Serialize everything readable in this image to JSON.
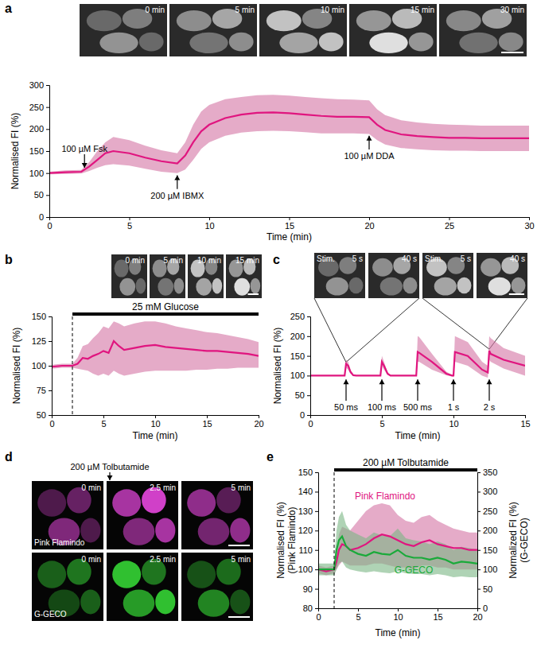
{
  "chart_data": [
    {
      "panel": "a",
      "type": "line",
      "images": [
        "0 min",
        "5 min",
        "10 min",
        "15 min",
        "30 min"
      ],
      "xlabel": "Time (min)",
      "ylabel": "Normalised FI (%)",
      "xlim": [
        0,
        30
      ],
      "xticks": [
        0,
        5,
        10,
        15,
        20,
        25,
        30
      ],
      "ylim": [
        0,
        300
      ],
      "yticks": [
        0,
        50,
        100,
        150,
        200,
        250,
        300
      ],
      "grid": false,
      "x": [
        0,
        1,
        2,
        2.5,
        3,
        3.5,
        4,
        5,
        6,
        7,
        8,
        8.5,
        9,
        9.5,
        10,
        11,
        12,
        13,
        14,
        15,
        16,
        17,
        18,
        19,
        20,
        20.5,
        21,
        22,
        23,
        24,
        25,
        26,
        27,
        28,
        29,
        30
      ],
      "series": [
        {
          "color": "#e0157f",
          "values": [
            100,
            102,
            103,
            115,
            130,
            145,
            150,
            145,
            135,
            127,
            122,
            140,
            170,
            195,
            210,
            225,
            233,
            237,
            238,
            236,
            233,
            230,
            228,
            228,
            227,
            210,
            198,
            188,
            184,
            182,
            180,
            180,
            179,
            179,
            179,
            179
          ],
          "lower": [
            97,
            98,
            99,
            105,
            112,
            118,
            120,
            117,
            110,
            103,
            100,
            108,
            130,
            155,
            170,
            185,
            192,
            195,
            196,
            195,
            193,
            190,
            190,
            190,
            189,
            175,
            165,
            157,
            154,
            152,
            151,
            151,
            150,
            150,
            150,
            150
          ],
          "upper": [
            103,
            106,
            107,
            125,
            150,
            170,
            182,
            175,
            162,
            152,
            145,
            170,
            210,
            240,
            255,
            268,
            273,
            277,
            278,
            276,
            273,
            270,
            268,
            267,
            265,
            245,
            232,
            220,
            215,
            212,
            210,
            209,
            208,
            208,
            208,
            208
          ]
        }
      ],
      "annotations": [
        {
          "text": "100 µM Fsk",
          "x": 2.2,
          "y": 112,
          "text_y": 148
        },
        {
          "text": "200 µM IBMX",
          "x": 8,
          "y": 95,
          "text_y": 42
        },
        {
          "text": "100 µM DDA",
          "x": 20,
          "y": 185,
          "text_y": 132
        }
      ]
    },
    {
      "panel": "b",
      "type": "line",
      "images": [
        "0 min",
        "5 min",
        "10 min",
        "15 min"
      ],
      "xlabel": "Time (min)",
      "ylabel": "Normalised FI (%)",
      "xlim": [
        0,
        20
      ],
      "xticks": [
        0,
        5,
        10,
        15,
        20
      ],
      "ylim": [
        50,
        150
      ],
      "yticks": [
        50,
        75,
        100,
        125,
        150
      ],
      "grid": false,
      "x": [
        0,
        1,
        2,
        2.5,
        3,
        3.5,
        4,
        4.5,
        5,
        5.5,
        6,
        6.5,
        7,
        8,
        9,
        10,
        11,
        12,
        13,
        14,
        15,
        16,
        17,
        18,
        19,
        20
      ],
      "series": [
        {
          "color": "#e0157f",
          "values": [
            99,
            100,
            100,
            102,
            108,
            107,
            110,
            112,
            115,
            113,
            125,
            120,
            116,
            118,
            120,
            121,
            119,
            118,
            117,
            116,
            115,
            115,
            114,
            113,
            112,
            110
          ],
          "lower": [
            97,
            98,
            98,
            97,
            96,
            95,
            92,
            90,
            92,
            90,
            95,
            92,
            90,
            92,
            94,
            95,
            95,
            95,
            95,
            96,
            96,
            97,
            97,
            98,
            98,
            98
          ],
          "upper": [
            101,
            102,
            102,
            108,
            120,
            122,
            128,
            133,
            140,
            138,
            145,
            143,
            140,
            143,
            145,
            145,
            143,
            140,
            138,
            136,
            134,
            133,
            131,
            129,
            127,
            124
          ]
        }
      ],
      "treatments": [
        {
          "text": "25 mM Glucose",
          "start": 2,
          "end": 20
        }
      ]
    },
    {
      "panel": "c",
      "type": "line",
      "images": [
        [
          "Stim.",
          "5 s"
        ],
        "40 s",
        [
          "Stim.",
          "5 s"
        ],
        "40 s"
      ],
      "xlabel": "Time (min)",
      "ylabel": "Normalised FI (%)",
      "xlim": [
        0,
        15
      ],
      "xticks": [
        0,
        5,
        10,
        15
      ],
      "ylim": [
        0,
        250
      ],
      "yticks": [
        0,
        50,
        100,
        150,
        200,
        250
      ],
      "grid": false,
      "x": [
        0,
        2.4,
        2.5,
        2.65,
        2.8,
        3.0,
        3.2,
        4.9,
        5.0,
        5.15,
        5.4,
        5.6,
        7.4,
        7.5,
        7.6,
        8.5,
        9.5,
        9.9,
        10.0,
        10.1,
        11,
        12,
        12.4,
        12.5,
        12.6,
        13.5,
        15
      ],
      "series": [
        {
          "color": "#e0157f",
          "values": [
            100,
            100,
            130,
            125,
            110,
            101,
            100,
            100,
            135,
            125,
            105,
            100,
            100,
            160,
            158,
            135,
            105,
            100,
            100,
            160,
            150,
            115,
            108,
            163,
            155,
            140,
            125
          ],
          "lower": [
            99,
            99,
            120,
            115,
            105,
            100,
            99,
            99,
            125,
            115,
            102,
            99,
            99,
            135,
            135,
            115,
            101,
            98,
            98,
            135,
            125,
            100,
            95,
            140,
            135,
            118,
            100
          ],
          "upper": [
            101,
            101,
            140,
            135,
            115,
            102,
            101,
            101,
            150,
            135,
            108,
            101,
            101,
            200,
            198,
            155,
            110,
            102,
            102,
            200,
            185,
            135,
            125,
            200,
            195,
            170,
            150
          ]
        }
      ],
      "annotations": [
        {
          "text": "50 ms",
          "x": 2.5,
          "y": 90,
          "text_y": 12
        },
        {
          "text": "100 ms",
          "x": 5,
          "y": 90,
          "text_y": 12
        },
        {
          "text": "500 ms",
          "x": 7.5,
          "y": 90,
          "text_y": 12
        },
        {
          "text": "1 s",
          "x": 10,
          "y": 90,
          "text_y": 12
        },
        {
          "text": "2 s",
          "x": 12.5,
          "y": 90,
          "text_y": 12
        }
      ]
    },
    {
      "panel": "d",
      "type": "image",
      "annotations": [
        {
          "text": "200 µM Tolbutamide"
        }
      ],
      "columns": [
        "0 min",
        "2.5 min",
        "5 min"
      ],
      "rows": [
        {
          "name": "Pink Flamindo",
          "color": "#d040c8"
        },
        {
          "name": "G-GECO",
          "color": "#30c030"
        }
      ]
    },
    {
      "panel": "e",
      "type": "line",
      "xlabel": "Time (min)",
      "ylabel": [
        "Normalised FI (%)",
        "(Pink Flamindo)"
      ],
      "y2label": [
        "Normalized FI (%)",
        "(G-GECO)"
      ],
      "xlim": [
        0,
        20
      ],
      "xticks": [
        0,
        5,
        10,
        15,
        20
      ],
      "ylim": [
        80,
        150
      ],
      "yticks": [
        80,
        90,
        100,
        110,
        120,
        130,
        140,
        150
      ],
      "y2lim": [
        0,
        350
      ],
      "y2ticks": [
        0,
        50,
        100,
        150,
        200,
        250,
        300,
        350
      ],
      "grid": false,
      "x": [
        0,
        1,
        2,
        2.3,
        2.6,
        3,
        3.5,
        4,
        5,
        6,
        7,
        8,
        9,
        10,
        11,
        12,
        13,
        14,
        15,
        16,
        17,
        18,
        19,
        20
      ],
      "series": [
        {
          "name": "Pink Flamindo",
          "color": "#e0157f",
          "values": [
            100,
            99,
            100,
            104,
            110,
            113,
            112,
            110,
            111,
            113,
            116,
            118,
            117,
            115,
            113,
            112,
            114,
            115,
            113,
            112,
            111,
            111,
            110,
            110
          ],
          "lower": [
            98,
            97,
            98,
            100,
            102,
            104,
            103,
            102,
            102,
            102,
            103,
            103,
            102,
            101,
            101,
            100,
            102,
            102,
            101,
            101,
            100,
            100,
            100,
            100
          ],
          "upper": [
            102,
            101,
            102,
            108,
            118,
            122,
            121,
            120,
            125,
            130,
            133,
            134,
            133,
            128,
            125,
            124,
            127,
            128,
            125,
            123,
            121,
            120,
            119,
            119
          ]
        },
        {
          "name": "G-GECO",
          "color": "#1aaa3a",
          "axis": "y2",
          "values": [
            100,
            100,
            100,
            150,
            175,
            185,
            160,
            150,
            140,
            135,
            145,
            140,
            138,
            150,
            135,
            130,
            130,
            125,
            130,
            125,
            115,
            120,
            118,
            115
          ],
          "lower": [
            85,
            85,
            85,
            100,
            115,
            120,
            105,
            100,
            95,
            92,
            95,
            92,
            90,
            95,
            90,
            88,
            88,
            85,
            88,
            85,
            80,
            82,
            80,
            80
          ],
          "upper": [
            115,
            115,
            115,
            200,
            235,
            250,
            215,
            200,
            190,
            180,
            195,
            188,
            185,
            205,
            180,
            175,
            172,
            165,
            172,
            165,
            150,
            158,
            155,
            150
          ]
        }
      ],
      "treatments": [
        {
          "text": "200 µM Tolbutamide",
          "start": 2,
          "end": 20
        }
      ]
    }
  ]
}
